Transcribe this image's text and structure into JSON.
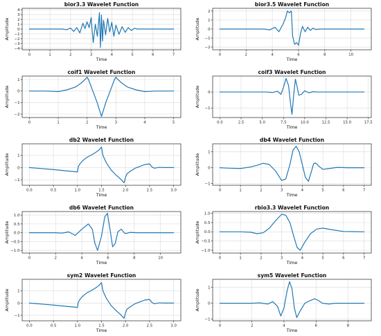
{
  "style": {
    "line_color": "#1f77b4",
    "grid": true
  },
  "chart_data": [
    {
      "type": "line",
      "title": "bior3.3 Wavelet Function",
      "xlabel": "Time",
      "ylabel": "Amplitude",
      "xlim": [
        -0.35,
        7.35
      ],
      "ylim": [
        -4.3,
        4.3
      ],
      "xticks": [
        0,
        1,
        2,
        3,
        4,
        5,
        6,
        7
      ],
      "yticks": [
        -4,
        -3,
        -2,
        -1,
        0,
        1,
        2,
        3,
        4
      ],
      "series": [
        {
          "x": [
            0,
            1.6,
            1.8,
            2.0,
            2.15,
            2.3,
            2.45,
            2.6,
            2.7,
            2.8,
            2.9,
            3.0,
            3.05,
            3.1,
            3.2,
            3.3,
            3.4,
            3.45,
            3.5,
            3.55,
            3.6,
            3.7,
            3.8,
            3.9,
            4.0,
            4.1,
            4.2,
            4.35,
            4.5,
            4.65,
            4.8,
            4.95,
            5.1,
            5.25,
            7
          ],
          "y": [
            0,
            0,
            -0.15,
            0.2,
            -0.5,
            0.3,
            -0.8,
            1.2,
            0.1,
            1.5,
            0.3,
            2.4,
            -0.5,
            -2.8,
            1.0,
            -1.5,
            3.4,
            -3.8,
            2.9,
            -2.5,
            1.8,
            -1.2,
            2.2,
            -0.6,
            1.4,
            -1.5,
            0.8,
            -1.1,
            0.5,
            -0.7,
            0.3,
            -0.3,
            0.15,
            0,
            0
          ]
        }
      ]
    },
    {
      "type": "line",
      "title": "bior3.5 Wavelet Function",
      "xlabel": "Time",
      "ylabel": "Amplitude",
      "xlim": [
        -0.55,
        11.55
      ],
      "ylim": [
        -2.3,
        2.3
      ],
      "xticks": [
        0,
        2,
        4,
        6,
        8,
        10
      ],
      "yticks": [
        -2,
        -1,
        0,
        1,
        2
      ],
      "series": [
        {
          "x": [
            0,
            3.4,
            3.8,
            4.2,
            4.5,
            4.8,
            5.0,
            5.15,
            5.3,
            5.45,
            5.55,
            5.7,
            5.85,
            6.0,
            6.15,
            6.3,
            6.5,
            6.7,
            6.9,
            7.1,
            7.3,
            7.6,
            11
          ],
          "y": [
            0,
            0,
            -0.1,
            0.2,
            -0.3,
            0.5,
            1.2,
            2.0,
            1.8,
            2.0,
            -0.8,
            -1.7,
            -1.5,
            -1.8,
            -0.5,
            0.3,
            -0.3,
            0.2,
            -0.15,
            0.1,
            -0.05,
            0,
            0
          ]
        }
      ]
    },
    {
      "type": "line",
      "title": "coif1 Wavelet Function",
      "xlabel": "Time",
      "ylabel": "Amplitude",
      "xlim": [
        -0.25,
        5.25
      ],
      "ylim": [
        -2.3,
        1.3
      ],
      "xticks": [
        0,
        1,
        2,
        3,
        4,
        5
      ],
      "yticks": [
        -2,
        -1,
        0,
        1
      ],
      "series": [
        {
          "x": [
            0,
            0.5,
            0.8,
            1.0,
            1.3,
            1.6,
            1.8,
            1.95,
            2.0,
            2.05,
            2.2,
            2.35,
            2.45,
            2.5,
            2.55,
            2.65,
            2.8,
            2.95,
            3.0,
            3.05,
            3.2,
            3.4,
            3.7,
            4.0,
            4.4,
            5.0
          ],
          "y": [
            0,
            0,
            -0.02,
            -0.05,
            0.1,
            0.35,
            0.7,
            1.05,
            1.2,
            1.0,
            0.0,
            -1.0,
            -1.8,
            -2.2,
            -1.8,
            -1.0,
            0.0,
            1.0,
            1.2,
            1.05,
            0.7,
            0.35,
            0.1,
            -0.05,
            0,
            0
          ]
        }
      ]
    },
    {
      "type": "line",
      "title": "coif3 Wavelet Function",
      "xlabel": "Time",
      "ylabel": "Amplitude",
      "xlim": [
        -0.85,
        17.85
      ],
      "ylim": [
        -1.6,
        1.0
      ],
      "xticks": [
        0.0,
        2.5,
        5.0,
        7.5,
        10.0,
        12.5,
        15.0,
        17.5
      ],
      "yticks": [
        -1,
        0
      ],
      "series": [
        {
          "x": [
            0,
            5.5,
            6.2,
            6.8,
            7.2,
            7.5,
            7.8,
            8.1,
            8.3,
            8.5,
            8.7,
            8.9,
            9.1,
            9.3,
            9.6,
            10.0,
            10.5,
            11.0,
            11.5,
            17
          ],
          "y": [
            0,
            0,
            -0.03,
            0.05,
            -0.15,
            0.3,
            0.85,
            0.4,
            -0.6,
            -1.4,
            -0.2,
            0.8,
            0.35,
            -0.2,
            -0.15,
            0.08,
            -0.05,
            0.02,
            0,
            0
          ]
        }
      ]
    },
    {
      "type": "line",
      "title": "db2 Wavelet Function",
      "xlabel": "Time",
      "ylabel": "Amplitude",
      "xlim": [
        -0.15,
        3.15
      ],
      "ylim": [
        -1.45,
        1.95
      ],
      "xticks": [
        0.0,
        0.5,
        1.0,
        1.5,
        2.0,
        2.5,
        3.0
      ],
      "yticks": [
        -1,
        0,
        1
      ],
      "series": [
        {
          "x": [
            0,
            0.25,
            0.5,
            0.75,
            1.0,
            1.02,
            1.06,
            1.12,
            1.2,
            1.3,
            1.38,
            1.45,
            1.5,
            1.53,
            1.6,
            1.7,
            1.8,
            1.9,
            1.97,
            2.0,
            2.03,
            2.1,
            2.2,
            2.3,
            2.4,
            2.5,
            2.55,
            2.6,
            2.7,
            2.8,
            2.9,
            3.0
          ],
          "y": [
            0,
            -0.08,
            -0.16,
            -0.26,
            -0.35,
            0.1,
            0.35,
            0.6,
            0.85,
            1.05,
            1.25,
            1.45,
            1.68,
            1.0,
            0.4,
            -0.2,
            -0.6,
            -0.95,
            -1.25,
            -0.8,
            -0.5,
            -0.3,
            -0.05,
            0.1,
            0.25,
            0.3,
            0.05,
            -0.05,
            0.02,
            0,
            0,
            0
          ]
        }
      ]
    },
    {
      "type": "line",
      "title": "db4 Wavelet Function",
      "xlabel": "Time",
      "ylabel": "Amplitude",
      "xlim": [
        -0.35,
        7.35
      ],
      "ylim": [
        -1.1,
        1.5
      ],
      "xticks": [
        0,
        1,
        2,
        3,
        4,
        5,
        6,
        7
      ],
      "yticks": [
        -1,
        0,
        1
      ],
      "series": [
        {
          "x": [
            0,
            0.5,
            1.0,
            1.5,
            1.8,
            2.1,
            2.4,
            2.7,
            3.0,
            3.2,
            3.4,
            3.55,
            3.7,
            3.85,
            4.0,
            4.15,
            4.3,
            4.45,
            4.55,
            4.65,
            4.8,
            5.0,
            5.3,
            5.7,
            6.2,
            7.0
          ],
          "y": [
            0,
            -0.03,
            -0.05,
            0.05,
            0.15,
            0.28,
            0.2,
            -0.2,
            -0.8,
            -0.7,
            0.2,
            1.1,
            1.35,
            1.0,
            0.2,
            -0.6,
            -0.85,
            -0.2,
            0.25,
            0.3,
            0.1,
            -0.1,
            -0.05,
            0.02,
            0,
            0
          ]
        }
      ]
    },
    {
      "type": "line",
      "title": "db6 Wavelet Function",
      "xlabel": "Time",
      "ylabel": "Amplitude",
      "xlim": [
        -0.55,
        11.55
      ],
      "ylim": [
        -1.15,
        1.2
      ],
      "xticks": [
        0,
        2,
        4,
        6,
        8,
        10
      ],
      "yticks": [
        -1.0,
        -0.5,
        0.0,
        0.5,
        1.0
      ],
      "series": [
        {
          "x": [
            0,
            2.0,
            2.5,
            3.0,
            3.5,
            4.0,
            4.5,
            4.8,
            5.0,
            5.2,
            5.5,
            5.75,
            5.95,
            6.15,
            6.35,
            6.55,
            6.75,
            7.0,
            7.3,
            7.7,
            8.2,
            11
          ],
          "y": [
            0,
            0,
            -0.02,
            0.05,
            -0.15,
            0.2,
            0.5,
            0.2,
            -0.6,
            -1.0,
            -0.2,
            0.9,
            1.1,
            0.2,
            -0.8,
            -0.6,
            0.05,
            0.2,
            -0.05,
            0.02,
            0,
            0
          ]
        }
      ]
    },
    {
      "type": "line",
      "title": "rbio3.3 Wavelet Function",
      "xlabel": "Time",
      "ylabel": "Amplitude",
      "xlim": [
        -0.35,
        7.35
      ],
      "ylim": [
        -1.15,
        1.1
      ],
      "xticks": [
        0,
        1,
        2,
        3,
        4,
        5,
        6,
        7
      ],
      "yticks": [
        -1.0,
        -0.5,
        0.0,
        0.5,
        1.0
      ],
      "series": [
        {
          "x": [
            0,
            1.0,
            1.5,
            1.8,
            2.1,
            2.4,
            2.7,
            3.0,
            3.2,
            3.4,
            3.6,
            3.75,
            3.9,
            4.1,
            4.4,
            4.7,
            5.0,
            5.4,
            6.0,
            7.0
          ],
          "y": [
            0,
            0,
            -0.02,
            -0.1,
            -0.05,
            0.2,
            0.6,
            0.95,
            0.9,
            0.5,
            -0.3,
            -0.85,
            -1.0,
            -0.6,
            -0.1,
            0.15,
            0.2,
            0.12,
            0.02,
            0
          ]
        }
      ]
    },
    {
      "type": "line",
      "title": "sym2 Wavelet Function",
      "xlabel": "Time",
      "ylabel": "Amplitude",
      "xlim": [
        -0.15,
        3.15
      ],
      "ylim": [
        -1.45,
        1.95
      ],
      "xticks": [
        0.0,
        0.5,
        1.0,
        1.5,
        2.0,
        2.5,
        3.0
      ],
      "yticks": [
        -1,
        0,
        1
      ],
      "series": [
        {
          "x": [
            0,
            0.25,
            0.5,
            0.75,
            1.0,
            1.02,
            1.06,
            1.12,
            1.2,
            1.3,
            1.38,
            1.45,
            1.5,
            1.53,
            1.6,
            1.7,
            1.8,
            1.9,
            1.97,
            2.0,
            2.03,
            2.1,
            2.2,
            2.3,
            2.4,
            2.5,
            2.55,
            2.6,
            2.7,
            2.8,
            2.9,
            3.0
          ],
          "y": [
            0,
            -0.08,
            -0.16,
            -0.26,
            -0.35,
            0.1,
            0.35,
            0.6,
            0.85,
            1.05,
            1.25,
            1.45,
            1.68,
            1.0,
            0.4,
            -0.2,
            -0.6,
            -0.95,
            -1.25,
            -0.8,
            -0.5,
            -0.3,
            -0.05,
            0.1,
            0.25,
            0.3,
            0.05,
            -0.05,
            0.02,
            0,
            0,
            0
          ]
        }
      ]
    },
    {
      "type": "line",
      "title": "sym5 Wavelet Function",
      "xlabel": "Time",
      "ylabel": "Amplitude",
      "xlim": [
        -0.45,
        9.45
      ],
      "ylim": [
        -1.1,
        1.5
      ],
      "xticks": [
        0,
        2,
        4,
        6,
        8
      ],
      "yticks": [
        -1,
        0,
        1
      ],
      "series": [
        {
          "x": [
            0,
            2.0,
            2.5,
            3.0,
            3.3,
            3.6,
            3.8,
            4.0,
            4.2,
            4.35,
            4.5,
            4.65,
            4.8,
            5.0,
            5.3,
            5.6,
            5.9,
            6.1,
            6.4,
            6.8,
            7.2,
            9.0
          ],
          "y": [
            0,
            0,
            0.02,
            -0.05,
            0.1,
            -0.2,
            -0.8,
            -0.3,
            0.8,
            1.35,
            0.9,
            -0.3,
            -0.9,
            -0.5,
            0.0,
            0.15,
            0.28,
            0.2,
            0.0,
            -0.05,
            0,
            0
          ]
        }
      ]
    }
  ]
}
